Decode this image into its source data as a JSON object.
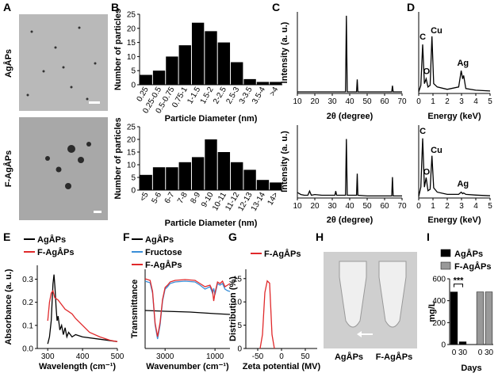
{
  "panel_labels": [
    "A",
    "B",
    "C",
    "D",
    "E",
    "F",
    "G",
    "H",
    "I"
  ],
  "image_labels": {
    "A": [
      "AgÅPs",
      "F-AgÅPs"
    ],
    "H": [
      "AgÅPs",
      "F-AgÅPs"
    ]
  },
  "chart_data": [
    {
      "type": "bar",
      "ylabel": "Number of particles",
      "xlabel": "Particle Diameter (nm)",
      "color": "#000000",
      "categories": [
        "0.25",
        "0.25-0.5",
        "0.5-0.75",
        "0.75-1",
        "1-1.5",
        "1.5-2",
        "2-2.5",
        "2.5-3",
        "3-3.5",
        "3.5-4",
        ">4"
      ],
      "values": [
        3.5,
        5,
        10,
        14,
        22,
        19,
        15,
        8,
        2,
        1,
        1
      ],
      "ylim": [
        0,
        25
      ],
      "yticks": [
        0,
        5,
        10,
        15,
        20,
        25
      ]
    },
    {
      "type": "bar",
      "ylabel": "Number of particles",
      "xlabel": "Particle Diameter (nm)",
      "color": "#000000",
      "categories": [
        "<5",
        "5-6",
        "6-7",
        "7-8",
        "8-9",
        "9-10",
        "10-11",
        "11-12",
        "12-13",
        "13-14",
        "14>"
      ],
      "values": [
        6,
        9,
        9,
        11,
        13,
        20,
        15,
        11,
        8,
        4,
        3
      ],
      "ylim": [
        0,
        25
      ],
      "yticks": [
        0,
        5,
        10,
        15,
        20,
        25
      ]
    },
    {
      "type": "line",
      "ylabel": "Intensity (a. u.)",
      "xlabel": "2θ (degree)",
      "xlim": [
        10,
        70
      ],
      "xticks": [
        10,
        20,
        30,
        40,
        50,
        60,
        70
      ],
      "ylim": [
        0,
        105
      ],
      "series": [
        {
          "color": "#000000",
          "x": [
            10,
            37.6,
            38.1,
            38.6,
            43.9,
            44.3,
            44.7,
            64.1,
            64.5,
            64.9,
            70
          ],
          "values": [
            2,
            2,
            100,
            2,
            2,
            18,
            2,
            2,
            10,
            2,
            2
          ]
        }
      ]
    },
    {
      "type": "line",
      "ylabel": "Intensity (a. u.)",
      "xlabel": "2θ (degree)",
      "xlim": [
        10,
        70
      ],
      "xticks": [
        10,
        20,
        30,
        40,
        50,
        60,
        70
      ],
      "ylim": [
        0,
        105
      ],
      "series": [
        {
          "color": "#000000",
          "x": [
            10,
            12,
            14,
            16,
            17,
            18,
            20,
            24,
            28,
            31.5,
            32,
            32.5,
            36,
            37.6,
            38.1,
            38.6,
            43.9,
            44.3,
            44.7,
            50,
            55,
            60,
            64.1,
            64.5,
            64.9,
            70
          ],
          "values": [
            8,
            5,
            4,
            4,
            10,
            4,
            5,
            4,
            4,
            4,
            10,
            4,
            4,
            4,
            85,
            4,
            4,
            35,
            4,
            3,
            3,
            3,
            3,
            30,
            3,
            3
          ]
        }
      ]
    },
    {
      "type": "line",
      "xlabel": "Energy (keV)",
      "xlim": [
        0,
        5
      ],
      "xticks": [
        0,
        1,
        2,
        3,
        4,
        5
      ],
      "ylim": [
        0,
        100
      ],
      "annotations": [
        "C",
        "O",
        "Cu",
        "Ag"
      ],
      "series": [
        {
          "color": "#000000",
          "x": [
            0,
            0.15,
            0.28,
            0.4,
            0.52,
            0.65,
            0.8,
            0.93,
            1.05,
            1.3,
            2,
            2.8,
            2.98,
            3.08,
            3.15,
            3.3,
            4,
            5
          ],
          "values": [
            2,
            10,
            60,
            12,
            18,
            8,
            10,
            70,
            12,
            8,
            5,
            8,
            28,
            18,
            22,
            6,
            4,
            3
          ]
        }
      ]
    },
    {
      "type": "line",
      "xlabel": "Energy (keV)",
      "xlim": [
        0,
        5
      ],
      "xticks": [
        0,
        1,
        2,
        3,
        4,
        5
      ],
      "ylim": [
        0,
        100
      ],
      "annotations": [
        "C",
        "O",
        "Cu",
        "Ag"
      ],
      "series": [
        {
          "color": "#000000",
          "x": [
            0,
            0.15,
            0.28,
            0.4,
            0.52,
            0.65,
            0.8,
            0.93,
            1.05,
            1.3,
            2,
            2.8,
            2.98,
            3.08,
            3.15,
            3.3,
            4,
            5
          ],
          "values": [
            2,
            15,
            82,
            15,
            28,
            10,
            12,
            58,
            14,
            8,
            5,
            5,
            8,
            6,
            7,
            5,
            4,
            3
          ]
        }
      ]
    },
    {
      "type": "line",
      "ylabel": "Absorbance (a. u.)",
      "xlabel": "Wavelength (cm⁻¹)",
      "xlim": [
        270,
        500
      ],
      "xticks": [
        300,
        400,
        500
      ],
      "ylim": [
        0,
        0.36
      ],
      "yticks": [
        {
          "value": 0,
          "label": "0.0"
        },
        0.1,
        0.2,
        0.3
      ],
      "series": [
        {
          "name": "AgÅPs",
          "color": "#000000",
          "x": [
            300,
            305,
            310,
            315,
            318,
            321,
            324,
            327,
            330,
            335,
            340,
            345,
            350,
            355,
            360,
            370,
            380,
            400,
            450,
            500
          ],
          "values": [
            0.02,
            0.05,
            0.12,
            0.28,
            0.32,
            0.26,
            0.18,
            0.12,
            0.14,
            0.08,
            0.1,
            0.06,
            0.09,
            0.05,
            0.07,
            0.05,
            0.06,
            0.05,
            0.04,
            0.03
          ]
        },
        {
          "name": "F-AgÅPs",
          "color": "#e0292b",
          "x": [
            300,
            305,
            310,
            315,
            320,
            330,
            340,
            350,
            360,
            370,
            380,
            400,
            420,
            450,
            480,
            500
          ],
          "values": [
            0.12,
            0.2,
            0.24,
            0.25,
            0.22,
            0.21,
            0.19,
            0.17,
            0.16,
            0.15,
            0.13,
            0.1,
            0.07,
            0.05,
            0.035,
            0.03
          ]
        }
      ]
    },
    {
      "type": "line",
      "ylabel": "Transmittance",
      "xlabel": "Wavenumber (cm⁻¹)",
      "xlim": [
        3800,
        400
      ],
      "xticks": [
        3000,
        1000
      ],
      "ylim": [
        0,
        100
      ],
      "series": [
        {
          "name": "AgÅPs",
          "color": "#000000",
          "x": [
            3800,
            3000,
            2000,
            1500,
            1000,
            400
          ],
          "values": [
            48,
            47,
            46,
            45,
            44,
            43
          ]
        },
        {
          "name": "Fructose",
          "color": "#3a8fd8",
          "x": [
            3800,
            3600,
            3500,
            3400,
            3300,
            3200,
            3100,
            3000,
            2900,
            2800,
            2600,
            2200,
            1800,
            1600,
            1400,
            1200,
            1100,
            1050,
            1000,
            900,
            800,
            700,
            600,
            500,
            400
          ],
          "values": [
            85,
            83,
            70,
            30,
            12,
            30,
            60,
            75,
            78,
            82,
            84,
            85,
            84,
            80,
            75,
            78,
            70,
            76,
            68,
            82,
            80,
            82,
            75,
            73,
            72
          ]
        },
        {
          "name": "F-AgÅPs",
          "color": "#e0292b",
          "x": [
            3800,
            3600,
            3500,
            3400,
            3300,
            3200,
            3100,
            3000,
            2900,
            2800,
            2600,
            2200,
            1800,
            1600,
            1400,
            1200,
            1100,
            1050,
            1000,
            900,
            800,
            700,
            600,
            500,
            400
          ],
          "values": [
            88,
            86,
            72,
            32,
            15,
            33,
            62,
            77,
            80,
            84,
            86,
            87,
            86,
            82,
            78,
            80,
            73,
            60,
            70,
            84,
            82,
            85,
            78,
            80,
            82
          ]
        }
      ]
    },
    {
      "type": "line",
      "ylabel": "Distribution (%)",
      "xlabel": "Zeta potential (MV)",
      "xlim": [
        -75,
        75
      ],
      "xticks": [
        -50,
        0,
        50
      ],
      "ylim": [
        0,
        17
      ],
      "yticks": [
        0,
        5,
        10,
        15
      ],
      "series": [
        {
          "name": "F-AgÅPs",
          "color": "#e0292b",
          "x": [
            -45,
            -40,
            -35,
            -30,
            -25,
            -20,
            -15
          ],
          "values": [
            0,
            3,
            12,
            14.5,
            14,
            3,
            0
          ]
        }
      ]
    },
    {
      "type": "bar",
      "ylabel": "mg/L",
      "xlabel": "Days",
      "ylim": [
        0,
        600
      ],
      "yticks": [
        0,
        200,
        400,
        600
      ],
      "categories": [
        "0",
        "30"
      ],
      "annotations": [
        "***"
      ],
      "series": [
        {
          "name": "AgÅPs",
          "color": "#000000",
          "values": [
            480,
            25
          ]
        },
        {
          "name": "F-AgÅPs",
          "color": "#999999",
          "values": [
            480,
            480
          ]
        }
      ]
    }
  ]
}
